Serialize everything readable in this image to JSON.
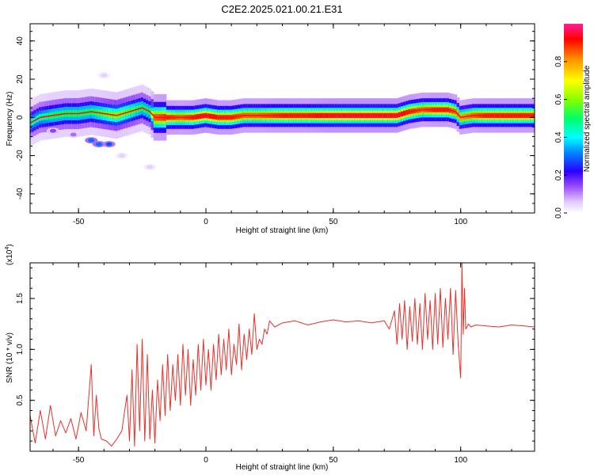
{
  "title": "C2E2.2025.021.00.21.E31",
  "colorbar": {
    "label": "Normalized spectral amplitude",
    "ticks": [
      "0.0",
      "0.2",
      "0.4",
      "0.6",
      "0.8"
    ]
  },
  "chart_data": [
    {
      "type": "heatmap",
      "xlabel": "Height of straight line (km)",
      "ylabel": "Frequency (Hz)",
      "xlim": [
        -69,
        129
      ],
      "ylim": [
        -50,
        49
      ],
      "xticks": [
        "-50",
        "0",
        "50",
        "100"
      ],
      "yticks": [
        "-40",
        "-20",
        "0",
        "20",
        "40"
      ],
      "colorscale": [
        "#ffffff",
        "#f2e6ff",
        "#d0a6ff",
        "#8a2be2",
        "#3a00ff",
        "#0000ff",
        "#00aaff",
        "#00ffff",
        "#00ff88",
        "#7cff00",
        "#ffff00",
        "#ff8c00",
        "#ff0000",
        "#ff1493"
      ],
      "ridge": {
        "x": [
          -69,
          -65,
          -60,
          -55,
          -50,
          -45,
          -40,
          -35,
          -30,
          -25,
          -22,
          -20,
          -15,
          -10,
          -5,
          0,
          5,
          10,
          15,
          20,
          30,
          40,
          50,
          60,
          70,
          75,
          80,
          85,
          90,
          95,
          98,
          100,
          105,
          110,
          115,
          120,
          125,
          129
        ],
        "freq": [
          -3,
          0,
          1,
          2,
          2,
          3,
          2,
          1,
          3,
          5,
          3,
          0,
          0,
          0,
          0,
          1,
          0,
          0,
          1,
          1,
          1,
          1,
          1,
          1,
          1,
          1,
          3,
          4,
          4,
          4,
          3,
          0,
          1,
          1,
          1,
          1,
          1,
          1
        ],
        "amplitude": [
          0.45,
          0.45,
          0.5,
          0.5,
          0.5,
          0.5,
          0.55,
          0.6,
          0.55,
          0.5,
          0.5,
          0.85,
          0.9,
          0.85,
          0.9,
          0.95,
          0.9,
          0.9,
          0.85,
          0.85,
          0.9,
          0.9,
          0.95,
          0.95,
          0.95,
          0.95,
          0.9,
          0.85,
          0.9,
          0.9,
          0.85,
          0.8,
          0.85,
          0.9,
          0.9,
          0.9,
          0.9,
          0.9
        ]
      },
      "blobs": [
        {
          "x": -60,
          "freq": -7,
          "amplitude": 0.15
        },
        {
          "x": -52,
          "freq": -9,
          "amplitude": 0.12
        },
        {
          "x": -45,
          "freq": -12,
          "amplitude": 0.3
        },
        {
          "x": -42,
          "freq": -14,
          "amplitude": 0.3
        },
        {
          "x": -38,
          "freq": -14,
          "amplitude": 0.28
        },
        {
          "x": -40,
          "freq": 22,
          "amplitude": 0.05
        },
        {
          "x": -33,
          "freq": -20,
          "amplitude": 0.05
        },
        {
          "x": -22,
          "freq": -26,
          "amplitude": 0.05
        }
      ]
    },
    {
      "type": "line",
      "xlabel": "Height of straight line (km)",
      "ylabel": "SNR (10 * v/v)",
      "yscale_label": "(x10",
      "yscale_exp": "4",
      "xlim": [
        -69,
        129
      ],
      "ylim": [
        0.0,
        1.85
      ],
      "xticks": [
        "-50",
        "0",
        "50",
        "100"
      ],
      "yticks": [
        "0.5",
        "1.0",
        "1.5"
      ],
      "series": [
        {
          "color": "#e8302a",
          "x": [
            -69,
            -67,
            -65,
            -63,
            -61,
            -59,
            -57,
            -55,
            -53,
            -51,
            -49,
            -47,
            -45,
            -44,
            -43,
            -42,
            -41,
            -39,
            -37,
            -35,
            -33,
            -31,
            -30,
            -29,
            -28,
            -27,
            -26,
            -25,
            -24,
            -23,
            -22,
            -21,
            -20,
            -19,
            -18,
            -17,
            -16,
            -15,
            -14,
            -13,
            -12,
            -11,
            -10,
            -9,
            -8,
            -7,
            -6,
            -5,
            -4,
            -3,
            -2,
            -1,
            0,
            1,
            2,
            3,
            4,
            5,
            6,
            7,
            8,
            9,
            10,
            11,
            12,
            13,
            14,
            15,
            16,
            17,
            18,
            19,
            20,
            21,
            22,
            23,
            24,
            25,
            27,
            30,
            35,
            40,
            45,
            50,
            55,
            60,
            65,
            70,
            72,
            74,
            75,
            76,
            77,
            78,
            79,
            80,
            81,
            82,
            83,
            84,
            85,
            86,
            87,
            88,
            89,
            90,
            91,
            92,
            93,
            94,
            95,
            96,
            97,
            98,
            99,
            100,
            100.5,
            101,
            101.5,
            102,
            103,
            104,
            106,
            110,
            115,
            120,
            125,
            129
          ],
          "values": [
            0.35,
            0.08,
            0.4,
            0.12,
            0.45,
            0.15,
            0.3,
            0.18,
            0.32,
            0.12,
            0.38,
            0.2,
            0.85,
            0.15,
            0.55,
            0.22,
            0.12,
            0.1,
            0.05,
            0.12,
            0.2,
            0.55,
            0.1,
            0.8,
            0.05,
            1.05,
            0.2,
            1.1,
            0.1,
            0.95,
            0.12,
            0.6,
            0.08,
            0.7,
            0.3,
            0.85,
            0.35,
            0.95,
            0.4,
            0.85,
            0.5,
            0.95,
            0.45,
            1.05,
            0.55,
            1.0,
            0.45,
            0.9,
            0.55,
            1.05,
            0.6,
            1.1,
            0.65,
            1.0,
            0.6,
            1.05,
            0.7,
            1.15,
            0.75,
            1.1,
            0.8,
            1.2,
            0.75,
            1.05,
            0.85,
            1.25,
            0.8,
            1.15,
            0.9,
            1.2,
            0.95,
            1.35,
            1.0,
            1.1,
            1.05,
            1.2,
            1.15,
            1.28,
            1.22,
            1.26,
            1.28,
            1.24,
            1.27,
            1.29,
            1.27,
            1.28,
            1.26,
            1.28,
            1.2,
            1.38,
            1.05,
            1.45,
            1.1,
            1.48,
            1.0,
            1.42,
            1.08,
            1.5,
            1.05,
            1.45,
            1.0,
            1.55,
            1.1,
            1.48,
            1.0,
            1.55,
            1.05,
            1.6,
            1.02,
            1.5,
            1.1,
            1.6,
            0.95,
            1.58,
            1.05,
            0.72,
            1.85,
            1.15,
            1.6,
            1.2,
            1.25,
            1.22,
            1.24,
            1.23,
            1.22,
            1.24,
            1.23,
            1.22
          ]
        }
      ]
    }
  ]
}
